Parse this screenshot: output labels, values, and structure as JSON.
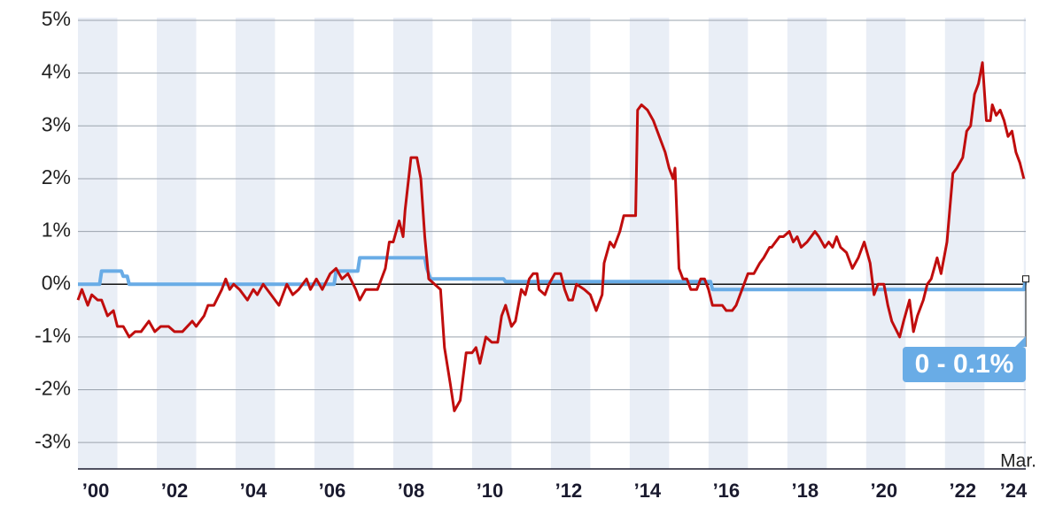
{
  "chart_data": {
    "type": "line",
    "xlim": [
      2000,
      2024.05
    ],
    "ylim": [
      -3.5,
      5
    ],
    "yticks": [
      {
        "value": 5,
        "label": "5%"
      },
      {
        "value": 4,
        "label": "4%"
      },
      {
        "value": 3,
        "label": "3%"
      },
      {
        "value": 2,
        "label": "2%"
      },
      {
        "value": 1,
        "label": "1%"
      },
      {
        "value": 0,
        "label": "0%"
      },
      {
        "value": -1,
        "label": "-1%"
      },
      {
        "value": -2,
        "label": "-2%"
      },
      {
        "value": -3,
        "label": "-3%"
      }
    ],
    "xticks": [
      {
        "value": 2000,
        "label": "’00"
      },
      {
        "value": 2002,
        "label": "’02"
      },
      {
        "value": 2004,
        "label": "’04"
      },
      {
        "value": 2006,
        "label": "’06"
      },
      {
        "value": 2008,
        "label": "’08"
      },
      {
        "value": 2010,
        "label": "’10"
      },
      {
        "value": 2012,
        "label": "’12"
      },
      {
        "value": 2014,
        "label": "’14"
      },
      {
        "value": 2016,
        "label": "’16"
      },
      {
        "value": 2018,
        "label": "’18"
      },
      {
        "value": 2020,
        "label": "’20"
      },
      {
        "value": 2022,
        "label": "’22"
      },
      {
        "value": 2024,
        "label": "’24"
      }
    ],
    "grid": true,
    "series": [
      {
        "color": "#c00d0d",
        "x": [
          2000.0,
          2000.1,
          2000.25,
          2000.35,
          2000.5,
          2000.6,
          2000.75,
          2000.9,
          2001.0,
          2001.15,
          2001.3,
          2001.45,
          2001.6,
          2001.8,
          2001.95,
          2002.1,
          2002.3,
          2002.45,
          2002.65,
          2002.9,
          2003.0,
          2003.2,
          2003.3,
          2003.45,
          2003.65,
          2003.75,
          2003.85,
          2003.95,
          2004.1,
          2004.3,
          2004.45,
          2004.55,
          2004.7,
          2004.9,
          2005.1,
          2005.3,
          2005.45,
          2005.6,
          2005.8,
          2005.9,
          2006.05,
          2006.2,
          2006.4,
          2006.55,
          2006.7,
          2006.85,
          2007.05,
          2007.15,
          2007.3,
          2007.6,
          2007.8,
          2007.9,
          2008.0,
          2008.15,
          2008.25,
          2008.3,
          2008.45,
          2008.6,
          2008.7,
          2008.8,
          2008.9,
          2009.05,
          2009.2,
          2009.3,
          2009.45,
          2009.55,
          2009.7,
          2009.85,
          2010.0,
          2010.1,
          2010.2,
          2010.35,
          2010.5,
          2010.65,
          2010.75,
          2010.85,
          2011.0,
          2011.1,
          2011.25,
          2011.35,
          2011.45,
          2011.55,
          2011.65,
          2011.7,
          2011.85,
          2011.95,
          2012.1,
          2012.25,
          2012.35,
          2012.45,
          2012.55,
          2012.65,
          2012.85,
          2013.0,
          2013.15,
          2013.3,
          2013.35,
          2013.5,
          2013.6,
          2013.75,
          2013.85,
          2014.15,
          2014.2,
          2014.3,
          2014.45,
          2014.6,
          2014.7,
          2014.9,
          2015.0,
          2015.1,
          2015.15,
          2015.25,
          2015.35,
          2015.45,
          2015.55,
          2015.7,
          2015.8,
          2015.9,
          2016.0,
          2016.1,
          2016.35,
          2016.45,
          2016.6,
          2016.7,
          2016.85,
          2017.0,
          2017.15,
          2017.3,
          2017.4,
          2017.55,
          2017.6,
          2017.8,
          2017.9,
          2018.05,
          2018.15,
          2018.25,
          2018.35,
          2018.5,
          2018.6,
          2018.7,
          2018.8,
          2018.95,
          2019.05,
          2019.15,
          2019.25,
          2019.35,
          2019.5,
          2019.65,
          2019.8,
          2019.95,
          2020.1,
          2020.2,
          2020.3,
          2020.45,
          2020.55,
          2020.65,
          2020.85,
          2020.95,
          2021.1,
          2021.2,
          2021.3,
          2021.45,
          2021.55,
          2021.65,
          2021.8,
          2021.9,
          2022.05,
          2022.2,
          2022.3,
          2022.45,
          2022.55,
          2022.65,
          2022.75,
          2022.85,
          2022.95,
          2023.05,
          2023.15,
          2023.2,
          2023.3,
          2023.4,
          2023.5,
          2023.6,
          2023.7,
          2023.8,
          2023.9,
          2024.0
        ],
        "values": [
          -0.3,
          -0.1,
          -0.4,
          -0.2,
          -0.3,
          -0.3,
          -0.6,
          -0.5,
          -0.8,
          -0.8,
          -1.0,
          -0.9,
          -0.9,
          -0.7,
          -0.9,
          -0.8,
          -0.8,
          -0.9,
          -0.9,
          -0.7,
          -0.8,
          -0.6,
          -0.4,
          -0.4,
          -0.1,
          0.1,
          -0.1,
          0.0,
          -0.1,
          -0.3,
          -0.1,
          -0.2,
          0.0,
          -0.2,
          -0.4,
          0.0,
          -0.2,
          -0.1,
          0.1,
          -0.1,
          0.1,
          -0.1,
          0.2,
          0.3,
          0.1,
          0.2,
          -0.1,
          -0.3,
          -0.1,
          -0.1,
          0.3,
          0.8,
          0.8,
          1.2,
          0.9,
          1.4,
          2.4,
          2.4,
          2.0,
          0.9,
          0.1,
          0.0,
          -0.1,
          -1.2,
          -1.9,
          -2.4,
          -2.2,
          -1.3,
          -1.3,
          -1.2,
          -1.5,
          -1.0,
          -1.1,
          -1.1,
          -0.6,
          -0.4,
          -0.8,
          -0.7,
          -0.1,
          -0.2,
          0.1,
          0.2,
          0.2,
          -0.1,
          -0.2,
          0.0,
          0.2,
          0.2,
          -0.1,
          -0.3,
          -0.3,
          0.0,
          -0.1,
          -0.2,
          -0.5,
          -0.2,
          0.4,
          0.8,
          0.7,
          1.0,
          1.3,
          1.3,
          3.3,
          3.4,
          3.3,
          3.1,
          2.9,
          2.5,
          2.2,
          2.0,
          2.2,
          0.3,
          0.1,
          0.1,
          -0.1,
          -0.1,
          0.1,
          0.1,
          -0.1,
          -0.4,
          -0.4,
          -0.5,
          -0.5,
          -0.4,
          -0.1,
          0.2,
          0.2,
          0.4,
          0.5,
          0.7,
          0.7,
          0.9,
          0.9,
          1.0,
          0.8,
          0.9,
          0.7,
          0.8,
          0.9,
          1.0,
          0.9,
          0.7,
          0.8,
          0.7,
          0.9,
          0.7,
          0.6,
          0.3,
          0.5,
          0.8,
          0.4,
          -0.2,
          0.0,
          0.0,
          -0.4,
          -0.7,
          -1.0,
          -0.7,
          -0.3,
          -0.9,
          -0.6,
          -0.3,
          0.0,
          0.1,
          0.5,
          0.2,
          0.8,
          2.1,
          2.2,
          2.4,
          2.9,
          3.0,
          3.6,
          3.8,
          4.2,
          3.1,
          3.1,
          3.4,
          3.2,
          3.3,
          3.1,
          2.8,
          2.9,
          2.5,
          2.3,
          2.0
        ]
      },
      {
        "color": "#69ace6",
        "x": [
          2000.0,
          2000.55,
          2000.6,
          2001.1,
          2001.15,
          2001.25,
          2001.3,
          2006.5,
          2006.55,
          2007.1,
          2007.15,
          2008.8,
          2008.85,
          2008.95,
          2010.8,
          2010.85,
          2016.05,
          2016.1,
          2024.0,
          2024.05
        ],
        "values": [
          0,
          0,
          0.25,
          0.25,
          0.15,
          0.15,
          0,
          0,
          0.25,
          0.25,
          0.5,
          0.5,
          0.3,
          0.1,
          0.1,
          0.05,
          0.05,
          -0.1,
          -0.1,
          0.1
        ]
      }
    ],
    "annotations": [
      "0 - 0.1%",
      "Mar."
    ]
  }
}
